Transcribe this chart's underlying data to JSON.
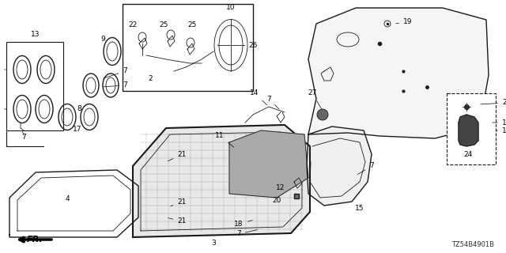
{
  "part_number": "TZ54B4901B",
  "bg_color": "#ffffff",
  "lc": "#1a1a1a",
  "figsize": [
    6.4,
    3.2
  ],
  "dpi": 100
}
